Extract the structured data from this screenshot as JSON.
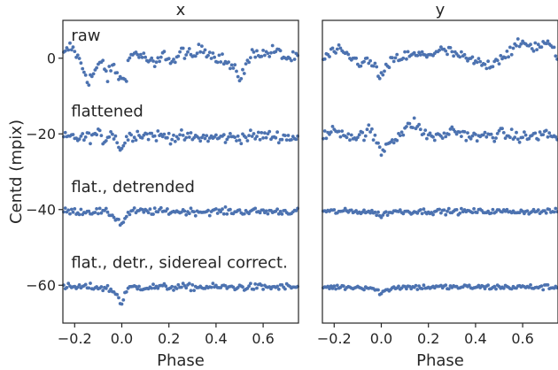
{
  "chart_data": [
    {
      "type": "scatter",
      "title": "x",
      "xlabel": "Phase",
      "ylabel": "Centd (mpix)",
      "xlim": [
        -0.25,
        0.75
      ],
      "ylim": [
        -70,
        10
      ],
      "xticks": [
        -0.2,
        0.0,
        0.2,
        0.4,
        0.6
      ],
      "xtick_labels": [
        "−0.2",
        "0.0",
        "0.2",
        "0.4",
        "0.6"
      ],
      "yticks": [
        0,
        -20,
        -40,
        -60
      ],
      "ytick_labels": [
        "0",
        "−20",
        "−40",
        "−60"
      ],
      "marker_color": "#4c72b0",
      "grid": false,
      "annotations": [
        {
          "text": "raw",
          "x": -0.23,
          "y": 6
        },
        {
          "text": "flattened",
          "x": -0.23,
          "y": -14
        },
        {
          "text": "flat., detrended",
          "x": -0.23,
          "y": -34
        },
        {
          "text": "flat., detr., sidereal correct.",
          "x": -0.23,
          "y": -54
        }
      ],
      "series": [
        {
          "label": "raw",
          "anchors": [
            [
              -0.25,
              0.5
            ],
            [
              -0.22,
              3
            ],
            [
              -0.2,
              2
            ],
            [
              -0.17,
              -2
            ],
            [
              -0.14,
              -6
            ],
            [
              -0.11,
              -3
            ],
            [
              -0.08,
              -1
            ],
            [
              -0.06,
              -5
            ],
            [
              -0.04,
              -2
            ],
            [
              -0.02,
              -4
            ],
            [
              0.0,
              -6
            ],
            [
              0.02,
              -4
            ],
            [
              0.03,
              0
            ],
            [
              0.06,
              1.5
            ],
            [
              0.1,
              0
            ],
            [
              0.14,
              -2
            ],
            [
              0.18,
              1
            ],
            [
              0.22,
              -1
            ],
            [
              0.26,
              2
            ],
            [
              0.3,
              0
            ],
            [
              0.34,
              3
            ],
            [
              0.38,
              1
            ],
            [
              0.42,
              0
            ],
            [
              0.46,
              -2
            ],
            [
              0.5,
              -5
            ],
            [
              0.53,
              -2
            ],
            [
              0.56,
              2
            ],
            [
              0.6,
              1
            ],
            [
              0.65,
              2
            ],
            [
              0.7,
              0
            ],
            [
              0.75,
              0
            ]
          ],
          "spread": 1.6
        },
        {
          "label": "flattened",
          "anchors": [
            [
              -0.25,
              -21
            ],
            [
              -0.15,
              -21
            ],
            [
              -0.1,
              -20
            ],
            [
              -0.07,
              -22
            ],
            [
              -0.05,
              -19
            ],
            [
              -0.02,
              -22
            ],
            [
              0.0,
              -24
            ],
            [
              0.02,
              -21
            ],
            [
              0.06,
              -20
            ],
            [
              0.15,
              -20.5
            ],
            [
              0.3,
              -21
            ],
            [
              0.45,
              -21
            ],
            [
              0.6,
              -20.5
            ],
            [
              0.75,
              -21
            ]
          ],
          "spread": 1.5
        },
        {
          "label": "flat., detrended",
          "anchors": [
            [
              -0.25,
              -40.5
            ],
            [
              -0.1,
              -40.5
            ],
            [
              -0.05,
              -41
            ],
            [
              -0.02,
              -42.5
            ],
            [
              0.0,
              -44
            ],
            [
              0.015,
              -42
            ],
            [
              0.04,
              -40.5
            ],
            [
              0.75,
              -40.5
            ]
          ],
          "spread": 0.9
        },
        {
          "label": "flat., detr., sidereal correct.",
          "anchors": [
            [
              -0.25,
              -60.5
            ],
            [
              -0.1,
              -60.5
            ],
            [
              -0.05,
              -61
            ],
            [
              -0.02,
              -62.5
            ],
            [
              0.0,
              -65
            ],
            [
              0.015,
              -62
            ],
            [
              0.04,
              -60.5
            ],
            [
              0.75,
              -60.5
            ]
          ],
          "spread": 0.9
        }
      ]
    },
    {
      "type": "scatter",
      "title": "y",
      "xlabel": "Phase",
      "xlim": [
        -0.25,
        0.75
      ],
      "ylim": [
        -70,
        10
      ],
      "xticks": [
        -0.2,
        0.0,
        0.2,
        0.4,
        0.6
      ],
      "xtick_labels": [
        "−0.2",
        "0.0",
        "0.2",
        "0.4",
        "0.6"
      ],
      "marker_color": "#4c72b0",
      "grid": false,
      "series": [
        {
          "label": "raw",
          "anchors": [
            [
              -0.25,
              -0.5
            ],
            [
              -0.2,
              2
            ],
            [
              -0.15,
              1
            ],
            [
              -0.1,
              -1
            ],
            [
              -0.05,
              -1
            ],
            [
              -0.02,
              -3
            ],
            [
              0.0,
              -5
            ],
            [
              0.02,
              -3
            ],
            [
              0.05,
              -0.5
            ],
            [
              0.1,
              0.5
            ],
            [
              0.2,
              1
            ],
            [
              0.25,
              2
            ],
            [
              0.3,
              1.5
            ],
            [
              0.35,
              0
            ],
            [
              0.4,
              -1
            ],
            [
              0.45,
              -2
            ],
            [
              0.5,
              0
            ],
            [
              0.55,
              2
            ],
            [
              0.6,
              4
            ],
            [
              0.65,
              3
            ],
            [
              0.7,
              4
            ],
            [
              0.73,
              2
            ],
            [
              0.75,
              1
            ]
          ],
          "spread": 1.5
        },
        {
          "label": "flattened",
          "anchors": [
            [
              -0.25,
              -21
            ],
            [
              -0.2,
              -19
            ],
            [
              -0.15,
              -20
            ],
            [
              -0.1,
              -21
            ],
            [
              -0.05,
              -19
            ],
            [
              -0.02,
              -22
            ],
            [
              0.0,
              -25
            ],
            [
              0.03,
              -22
            ],
            [
              0.06,
              -21
            ],
            [
              0.1,
              -19
            ],
            [
              0.14,
              -17
            ],
            [
              0.18,
              -20
            ],
            [
              0.25,
              -21
            ],
            [
              0.3,
              -19
            ],
            [
              0.4,
              -21
            ],
            [
              0.5,
              -20
            ],
            [
              0.6,
              -21
            ],
            [
              0.7,
              -20
            ],
            [
              0.75,
              -21
            ]
          ],
          "spread": 1.5
        },
        {
          "label": "flat., detrended",
          "anchors": [
            [
              -0.25,
              -40.5
            ],
            [
              -0.05,
              -40.5
            ],
            [
              0.0,
              -41.5
            ],
            [
              0.02,
              -41
            ],
            [
              0.05,
              -40.5
            ],
            [
              0.75,
              -40.5
            ]
          ],
          "spread": 0.7
        },
        {
          "label": "flat., detr., sidereal correct.",
          "anchors": [
            [
              -0.25,
              -60.5
            ],
            [
              -0.05,
              -60.5
            ],
            [
              0.0,
              -62
            ],
            [
              0.02,
              -61.5
            ],
            [
              0.05,
              -60.5
            ],
            [
              0.75,
              -60.5
            ]
          ],
          "spread": 0.7
        }
      ]
    }
  ]
}
